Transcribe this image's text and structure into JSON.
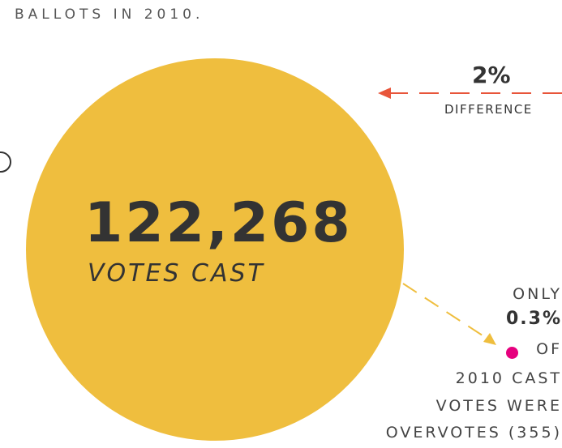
{
  "intro": {
    "text": "BALLOTS IN 2010."
  },
  "main_stat": {
    "value": "122,268",
    "label": "VOTES CAST"
  },
  "difference": {
    "value": "2%",
    "label": "DIFFERENCE"
  },
  "overvotes": {
    "only": "ONLY",
    "percent": "0.3%",
    "of": "OF",
    "line1": "2010 CAST",
    "line2": "VOTES WERE",
    "line3": "OVERVOTES (355)"
  },
  "colors": {
    "circle": "#efbe3e",
    "arrow_red": "#e8553a",
    "arrow_yellow": "#efbe3e",
    "dot_pink": "#e6007e",
    "text": "#333333"
  }
}
